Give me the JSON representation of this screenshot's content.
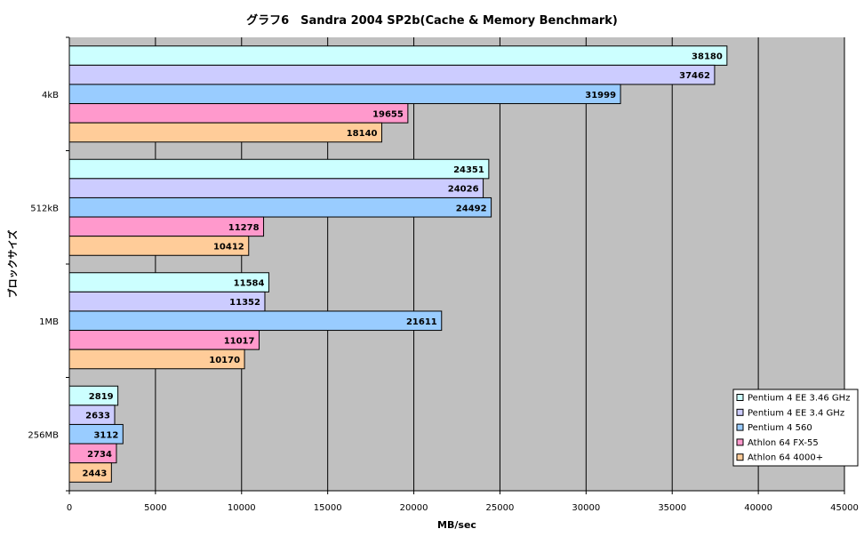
{
  "chart_data": {
    "type": "bar",
    "orientation": "horizontal",
    "title": "グラフ6　Sandra 2004 SP2b(Cache & Memory Benchmark)",
    "xlabel": "MB/sec",
    "ylabel": "ブロックサイズ",
    "xlim": [
      0,
      45000
    ],
    "xticks": [
      0,
      5000,
      10000,
      15000,
      20000,
      25000,
      30000,
      35000,
      40000,
      45000
    ],
    "grid": true,
    "legend_position": "bottom-right",
    "categories": [
      "4kB",
      "512kB",
      "1MB",
      "256MB"
    ],
    "series": [
      {
        "name": "Pentium 4 EE 3.46 GHz",
        "color": "#CCFFFF",
        "values": [
          38180,
          24351,
          11584,
          2819
        ]
      },
      {
        "name": "Pentium 4 EE 3.4 GHz",
        "color": "#CCCCFF",
        "values": [
          37462,
          24026,
          11352,
          2633
        ]
      },
      {
        "name": "Pentium 4 560",
        "color": "#99CCFF",
        "values": [
          31999,
          24492,
          21611,
          3112
        ]
      },
      {
        "name": "Athlon 64 FX-55",
        "color": "#FF99CC",
        "values": [
          19655,
          11278,
          11017,
          2734
        ]
      },
      {
        "name": "Athlon 64 4000+",
        "color": "#FFCC99",
        "values": [
          18140,
          10412,
          10170,
          2443
        ]
      }
    ],
    "plot_background": "#C0C0C0"
  }
}
